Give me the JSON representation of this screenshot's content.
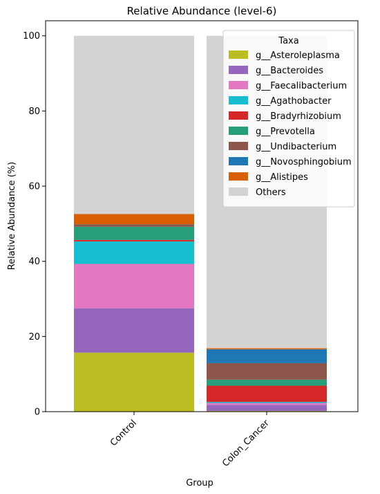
{
  "chart_data": {
    "type": "bar",
    "stacked": true,
    "title": "Relative Abundance (level-6)",
    "xlabel": "Group",
    "ylabel": "Relative Abundance (%)",
    "ylim": [
      0,
      104
    ],
    "yticks": [
      0,
      20,
      40,
      60,
      80,
      100
    ],
    "categories": [
      "Control",
      "Colon_Cancer"
    ],
    "series": [
      {
        "name": "g__Asteroleplasma",
        "color": "#bcbd22",
        "values": [
          15.7,
          0.2
        ]
      },
      {
        "name": "g__Bacteroides",
        "color": "#9467bd",
        "values": [
          11.8,
          1.6
        ]
      },
      {
        "name": "g__Faecalibacterium",
        "color": "#e377c2",
        "values": [
          11.8,
          0.5
        ]
      },
      {
        "name": "g__Agathobacter",
        "color": "#17becf",
        "values": [
          6.0,
          0.3
        ]
      },
      {
        "name": "g__Bradyrhizobium",
        "color": "#d62728",
        "values": [
          0.4,
          4.3
        ]
      },
      {
        "name": "g__Prevotella",
        "color": "#279e7a",
        "values": [
          3.5,
          1.6
        ]
      },
      {
        "name": "g__Undibacterium",
        "color": "#8c564b",
        "values": [
          0.5,
          4.4
        ]
      },
      {
        "name": "g__Novosphingobium",
        "color": "#1f77b4",
        "values": [
          0.1,
          3.7
        ]
      },
      {
        "name": "g__Alistipes",
        "color": "#d95f02",
        "values": [
          2.8,
          0.3
        ]
      },
      {
        "name": "Others",
        "color": "#d3d3d3",
        "values": [
          47.4,
          83.1
        ]
      }
    ],
    "legend": {
      "title": "Taxa",
      "placement": "top-right"
    },
    "grid": false
  }
}
